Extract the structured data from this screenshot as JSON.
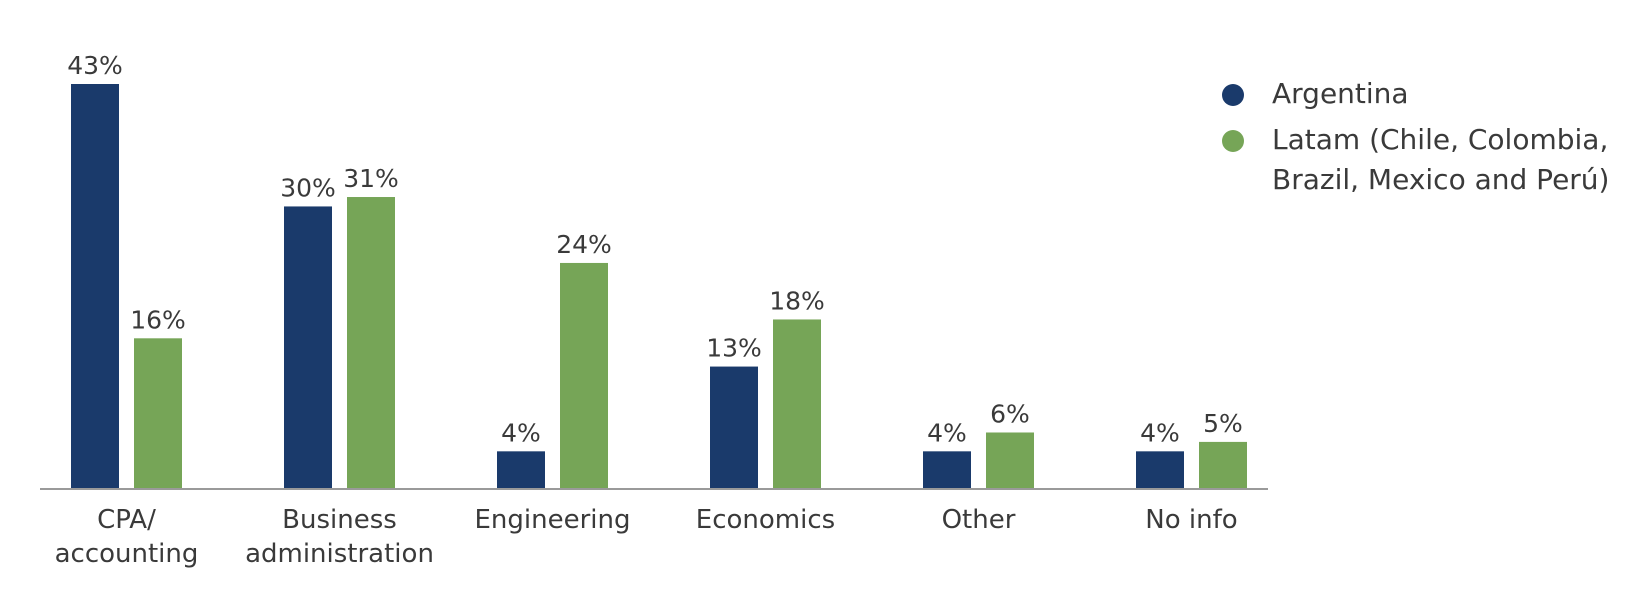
{
  "chart_data": {
    "type": "bar",
    "categories": [
      [
        "CPA/",
        "accounting"
      ],
      [
        "Business",
        "administration"
      ],
      [
        "Engineering"
      ],
      [
        "Economics"
      ],
      [
        "Other"
      ],
      [
        "No info"
      ]
    ],
    "series": [
      {
        "name": "Argentina",
        "color": "#1a3a6b",
        "values": [
          43,
          30,
          4,
          13,
          4,
          4
        ],
        "labels": [
          "43%",
          "30%",
          "4%",
          "13%",
          "4%",
          "4%"
        ]
      },
      {
        "name": "Latam (Chile, Colombia, Brazil, Mexico and Perú)",
        "color": "#76a557",
        "values": [
          16,
          31,
          24,
          18,
          6,
          5
        ],
        "labels": [
          "16%",
          "31%",
          "24%",
          "18%",
          "6%",
          "5%"
        ]
      }
    ],
    "ylim": [
      0,
      43
    ],
    "grid": false,
    "legend_position": "top-right",
    "axis_color": "#9a9a9a"
  },
  "legend": {
    "argentina_label": "Argentina",
    "latam_label": "Latam (Chile, Colombia, Brazil, Mexico and Perú)"
  }
}
